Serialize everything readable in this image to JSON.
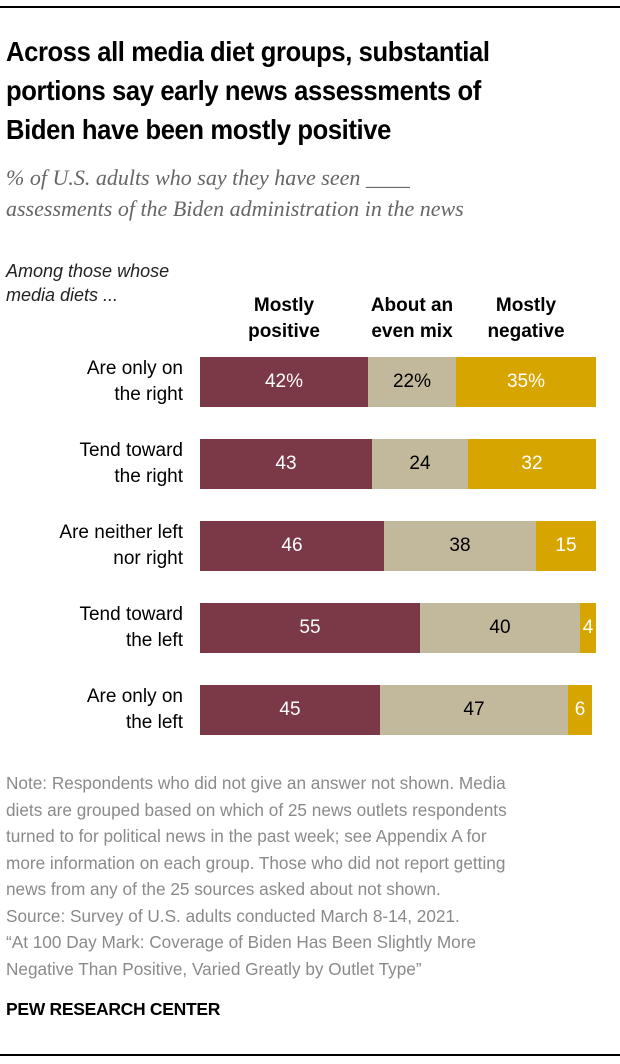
{
  "header": {
    "title_lines": [
      "Across all media diet groups, substantial",
      "portions say early news assessments of",
      "Biden have been mostly positive"
    ],
    "subtitle_lines": [
      "% of U.S. adults who say they have seen ____",
      "assessments of the Biden administration in the news"
    ]
  },
  "chart_data": {
    "type": "bar",
    "orientation": "horizontal-stacked",
    "title": "Across all media diet groups, substantial portions say early news assessments of Biden have been mostly positive",
    "subtitle": "% of U.S. adults who say they have seen ____ assessments of the Biden administration in the news",
    "row_header": [
      "Among those whose",
      "media diets ..."
    ],
    "categories": [
      [
        "Are only on",
        "the right"
      ],
      [
        "Tend toward",
        "the right"
      ],
      [
        "Are neither left",
        "nor right"
      ],
      [
        "Tend toward",
        "the left"
      ],
      [
        "Are only on",
        "the left"
      ]
    ],
    "series": [
      {
        "name": "Mostly positive",
        "header_lines": [
          "Mostly",
          "positive"
        ],
        "color": "#7b3846",
        "text_color": "#ffffff",
        "values": [
          42,
          43,
          46,
          55,
          45
        ]
      },
      {
        "name": "About an even mix",
        "header_lines": [
          "About an",
          "even mix"
        ],
        "color": "#c2b89b",
        "text_color": "#000000",
        "values": [
          22,
          24,
          38,
          40,
          47
        ]
      },
      {
        "name": "Mostly negative",
        "header_lines": [
          "Mostly",
          "negative"
        ],
        "color": "#d7a500",
        "text_color": "#ffffff",
        "values": [
          35,
          32,
          15,
          4,
          6
        ]
      }
    ],
    "value_labels": [
      [
        "42%",
        "22%",
        "35%"
      ],
      [
        "43",
        "24",
        "32"
      ],
      [
        "46",
        "38",
        "15"
      ],
      [
        "55",
        "40",
        "4"
      ],
      [
        "45",
        "47",
        "6"
      ]
    ],
    "xlim": [
      0,
      100
    ],
    "grid": false,
    "legend": "column-headers-top"
  },
  "footer": {
    "note_lines": [
      "Note: Respondents who did not give an answer not shown. Media",
      "diets are grouped based on which of 25 news outlets respondents",
      "turned to for political news in the past week; see Appendix A for",
      "more information on each group. Those who did not report getting",
      "news from any of the 25 sources asked about not shown.",
      "Source: Survey of U.S. adults conducted March 8-14, 2021.",
      "“At 100 Day Mark: Coverage of Biden Has Been Slightly More",
      "Negative Than Positive, Varied Greatly by Outlet Type”"
    ],
    "brand": "PEW RESEARCH CENTER"
  }
}
